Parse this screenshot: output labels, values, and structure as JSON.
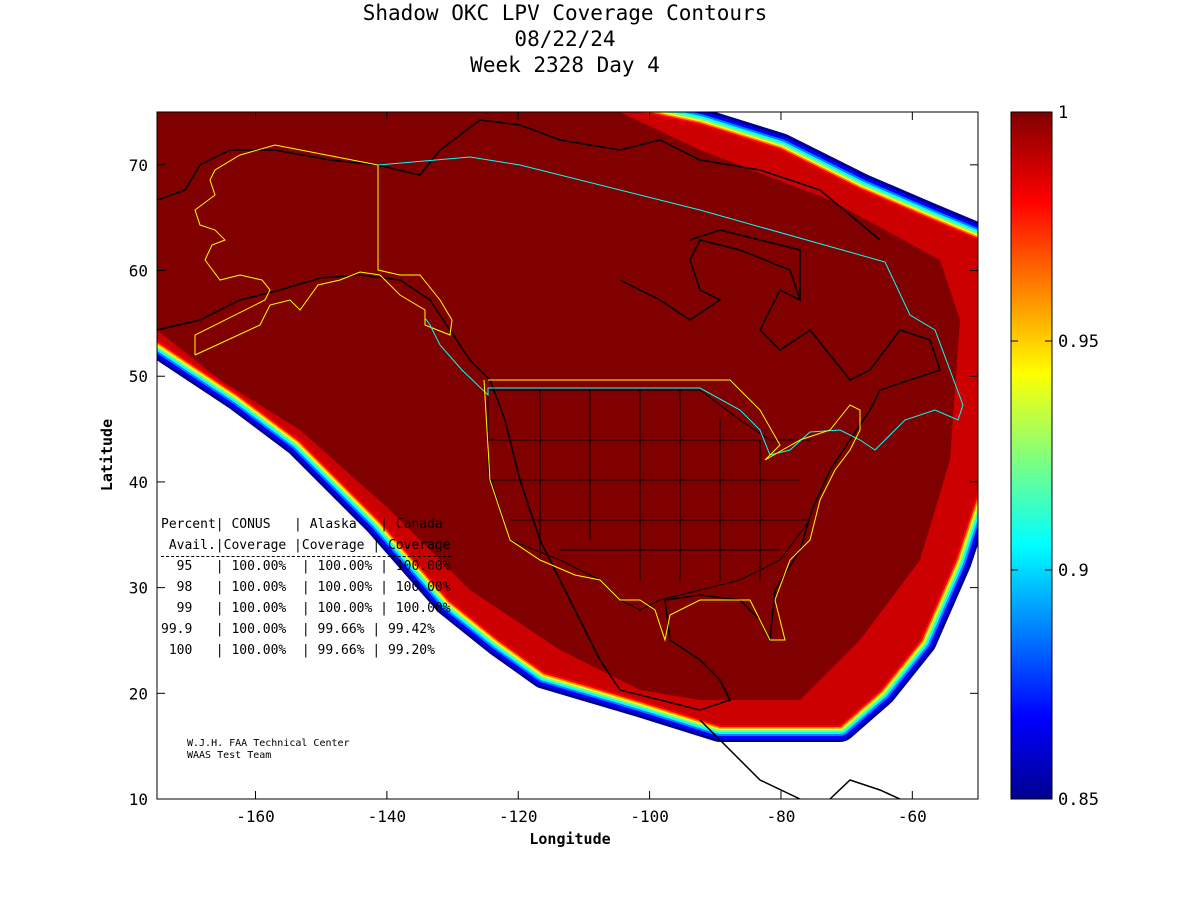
{
  "title": {
    "line1": "Shadow OKC LPV Coverage Contours",
    "line2": "08/22/24",
    "line3": "Week 2328 Day 4"
  },
  "axes": {
    "xlabel": "Longitude",
    "ylabel": "Latitude",
    "xlim": [
      -175,
      -50
    ],
    "ylim": [
      10,
      75
    ],
    "xticks": [
      "-160",
      "-140",
      "-120",
      "-100",
      "-80",
      "-60"
    ],
    "yticks": [
      "10",
      "20",
      "30",
      "40",
      "50",
      "60",
      "70"
    ]
  },
  "colorbar": {
    "ticks": [
      "1",
      "0.95",
      "0.9",
      "0.85"
    ],
    "range": [
      0.85,
      1
    ],
    "colormap": "jet"
  },
  "table": {
    "header1": "Percent| CONUS   | Alaska   | Canada",
    "header2": " Avail.|Coverage |Coverage | Coverage",
    "rows": [
      "  95   | 100.00%  | 100.00% | 100.00%",
      "  98   | 100.00%  | 100.00% | 100.00%",
      "  99   | 100.00%  | 100.00% | 100.00%",
      "99.9   | 100.00%  | 99.66% | 99.42%",
      " 100   | 100.00%  | 99.66% | 99.20%"
    ]
  },
  "credit": {
    "line1": "W.J.H. FAA Technical Center",
    "line2": "WAAS Test Team"
  },
  "colors": {
    "coverage": "#800000",
    "alaska_border": "#ffff00",
    "canada_border": "#00ffff"
  }
}
